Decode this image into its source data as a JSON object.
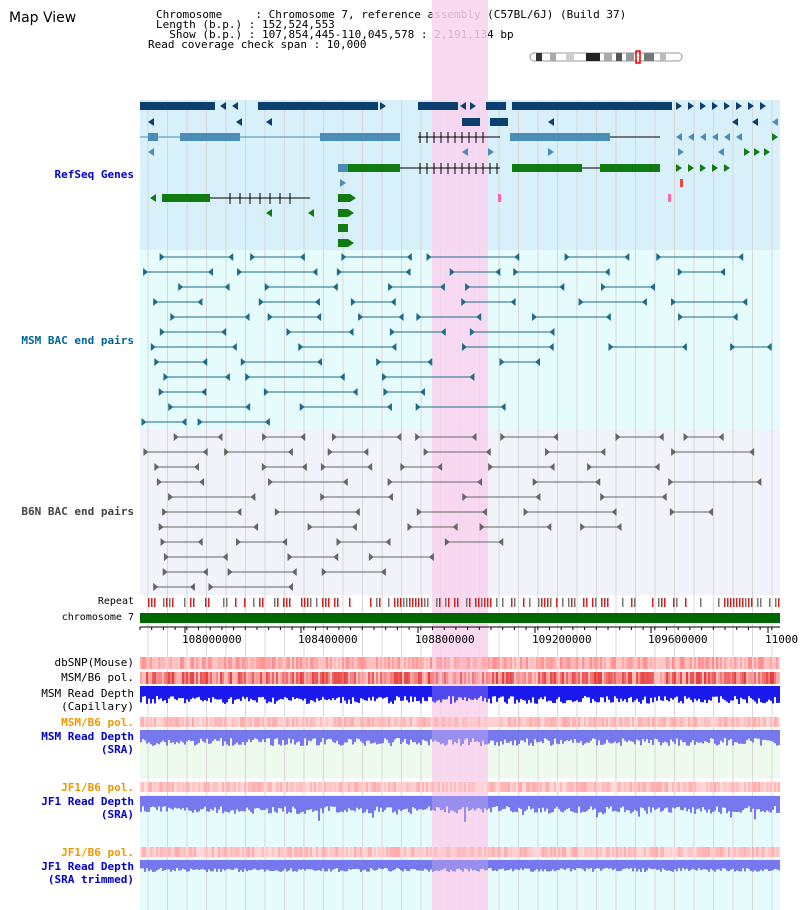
{
  "title": "Map View",
  "header": {
    "lines": [
      "Chromosome     : Chromosome 7, reference assembly (C57BL/6J) (Build 37)",
      "Length (b.p.) : 152,524,553",
      "  Show (b.p.) : 107,854,445-110,045,578 : 2,191,134 bp",
      "Read coverage check span : 10,000"
    ]
  },
  "tracks": {
    "refseq": "RefSeq Genes",
    "msm_bac": "MSM BAC end pairs",
    "b6n_bac": "B6N BAC end pairs",
    "repeat": "Repeat",
    "chromosome": "chromosome 7",
    "dbsnp": "dbSNP(Mouse)",
    "msm_b6_pol": "MSM/B6 pol.",
    "msm_depth_cap_1": "MSM Read Depth",
    "msm_depth_cap_2": "(Capillary)",
    "msm_b6_pol2": "MSM/B6 pol.",
    "msm_depth_sra_1": "MSM Read Depth",
    "msm_depth_sra_2": "(SRA)",
    "jf1_b6_pol": "JF1/B6 pol.",
    "jf1_depth_sra_1": "JF1 Read Depth",
    "jf1_depth_sra_2": "(SRA)",
    "jf1_b6_pol2": "JF1/B6 pol.",
    "jf1_depth_trim_1": "JF1 Read Depth",
    "jf1_depth_trim_2": "(SRA trimmed)"
  },
  "axis": {
    "ticks": [
      "108000000",
      "108400000",
      "108800000",
      "109200000",
      "109600000",
      "11000"
    ]
  },
  "colors": {
    "highlight": "#f9d3ee",
    "refseq_bg": "#d8f0fa",
    "msm_bg": "#e6fbfb",
    "b6n_bg": "#f2f2fa",
    "gene_dark": "#0c3f6e",
    "gene_mid": "#4a8db8",
    "gene_green": "#117a11",
    "chromosome": "#006600",
    "capillary_depth": "#1a1aee",
    "sra_depth": "#7777ee"
  }
}
